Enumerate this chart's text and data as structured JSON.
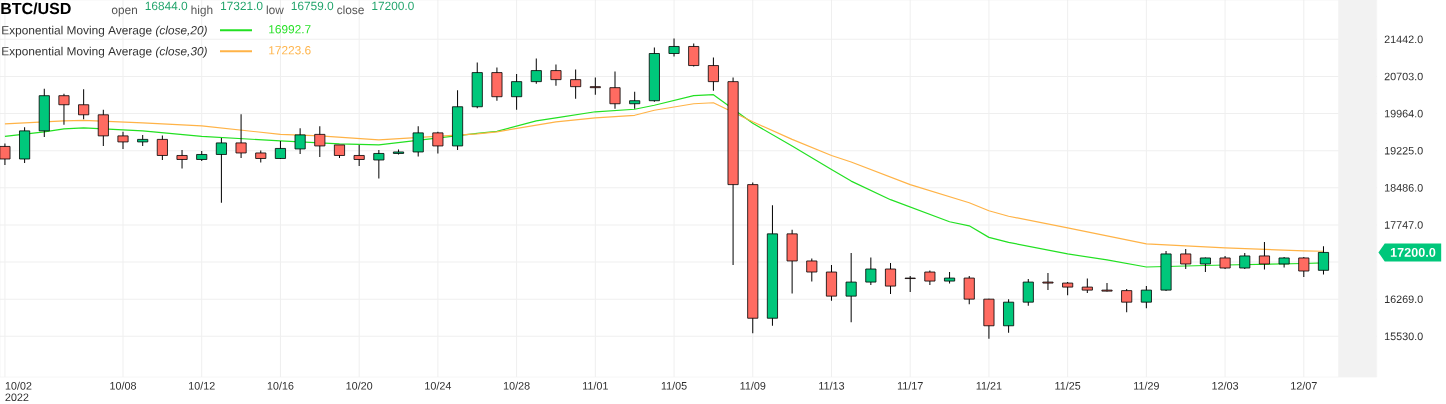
{
  "chart_data": {
    "type": "candlestick",
    "title": "BTC/USD",
    "annotations": [
      "open",
      "16844.0",
      "high",
      "17321.0",
      "low",
      "16759.0",
      "close",
      "17200.0",
      "16992.7",
      "17223.6",
      "17200.0"
    ],
    "x": [
      "2022-10-02",
      "2022-10-03",
      "2022-10-04",
      "2022-10-05",
      "2022-10-06",
      "2022-10-07",
      "2022-10-08",
      "2022-10-09",
      "2022-10-10",
      "2022-10-11",
      "2022-10-12",
      "2022-10-13",
      "2022-10-14",
      "2022-10-15",
      "2022-10-16",
      "2022-10-17",
      "2022-10-18",
      "2022-10-19",
      "2022-10-20",
      "2022-10-21",
      "2022-10-22",
      "2022-10-23",
      "2022-10-24",
      "2022-10-25",
      "2022-10-26",
      "2022-10-27",
      "2022-10-28",
      "2022-10-29",
      "2022-10-30",
      "2022-10-31",
      "2022-11-01",
      "2022-11-02",
      "2022-11-03",
      "2022-11-04",
      "2022-11-05",
      "2022-11-06",
      "2022-11-07",
      "2022-11-08",
      "2022-11-09",
      "2022-11-10",
      "2022-11-11",
      "2022-11-12",
      "2022-11-13",
      "2022-11-14",
      "2022-11-15",
      "2022-11-16",
      "2022-11-17",
      "2022-11-18",
      "2022-11-19",
      "2022-11-20",
      "2022-11-21",
      "2022-11-22",
      "2022-11-23",
      "2022-11-24",
      "2022-11-25",
      "2022-11-26",
      "2022-11-27",
      "2022-11-28",
      "2022-11-29",
      "2022-11-30",
      "2022-12-01",
      "2022-12-02",
      "2022-12-03",
      "2022-12-04",
      "2022-12-05",
      "2022-12-06",
      "2022-12-07",
      "2022-12-08"
    ],
    "ohlc": [
      [
        19310,
        19370,
        18940,
        19060
      ],
      [
        19060,
        19690,
        18980,
        19620
      ],
      [
        19620,
        20460,
        19500,
        20320
      ],
      [
        20320,
        20360,
        19740,
        20140
      ],
      [
        20140,
        20450,
        19850,
        19940
      ],
      [
        19940,
        20040,
        19320,
        19520
      ],
      [
        19520,
        19600,
        19260,
        19400
      ],
      [
        19400,
        19540,
        19320,
        19450
      ],
      [
        19450,
        19530,
        19040,
        19130
      ],
      [
        19130,
        19240,
        18870,
        19050
      ],
      [
        19050,
        19220,
        19020,
        19150
      ],
      [
        19150,
        19480,
        18190,
        19380
      ],
      [
        19380,
        19950,
        19080,
        19180
      ],
      [
        19180,
        19230,
        18990,
        19070
      ],
      [
        19070,
        19420,
        19060,
        19270
      ],
      [
        19260,
        19670,
        19160,
        19540
      ],
      [
        19550,
        19710,
        19100,
        19320
      ],
      [
        19340,
        19340,
        19080,
        19130
      ],
      [
        19130,
        19340,
        18920,
        19050
      ],
      [
        19040,
        19240,
        18670,
        19170
      ],
      [
        19170,
        19250,
        19150,
        19200
      ],
      [
        19200,
        19710,
        19110,
        19580
      ],
      [
        19580,
        19600,
        19170,
        19320
      ],
      [
        19320,
        20430,
        19240,
        20100
      ],
      [
        20100,
        20980,
        20070,
        20780
      ],
      [
        20780,
        20880,
        20220,
        20300
      ],
      [
        20300,
        20750,
        20040,
        20600
      ],
      [
        20600,
        21060,
        20560,
        20820
      ],
      [
        20820,
        20940,
        20520,
        20640
      ],
      [
        20640,
        20840,
        20260,
        20500
      ],
      [
        20500,
        20680,
        20340,
        20480
      ],
      [
        20480,
        20800,
        20060,
        20160
      ],
      [
        20160,
        20400,
        20060,
        20220
      ],
      [
        20220,
        21280,
        20200,
        21160
      ],
      [
        21160,
        21460,
        21100,
        21300
      ],
      [
        21300,
        21360,
        20900,
        20920
      ],
      [
        20920,
        21080,
        20420,
        20600
      ],
      [
        20600,
        20680,
        16950,
        18550
      ],
      [
        18550,
        18590,
        15590,
        15890
      ],
      [
        15890,
        18140,
        15740,
        17570
      ],
      [
        17570,
        17650,
        16380,
        17030
      ],
      [
        17030,
        17080,
        16620,
        16810
      ],
      [
        16810,
        16950,
        16240,
        16330
      ],
      [
        16330,
        17190,
        15810,
        16610
      ],
      [
        16610,
        17100,
        16550,
        16870
      ],
      [
        16870,
        16990,
        16370,
        16530
      ],
      [
        16690,
        16730,
        16410,
        16680
      ],
      [
        16810,
        16840,
        16550,
        16630
      ],
      [
        16630,
        16810,
        16580,
        16690
      ],
      [
        16690,
        16730,
        16170,
        16270
      ],
      [
        16270,
        16280,
        15480,
        15740
      ],
      [
        15740,
        16270,
        15600,
        16210
      ],
      [
        16210,
        16670,
        16140,
        16610
      ],
      [
        16610,
        16790,
        16450,
        16590
      ],
      [
        16590,
        16610,
        16350,
        16510
      ],
      [
        16510,
        16680,
        16390,
        16450
      ],
      [
        16450,
        16590,
        16420,
        16430
      ],
      [
        16440,
        16470,
        16010,
        16210
      ],
      [
        16210,
        16530,
        16090,
        16450
      ],
      [
        16450,
        17230,
        16430,
        17170
      ],
      [
        17170,
        17270,
        16870,
        16970
      ],
      [
        16970,
        17100,
        16810,
        17090
      ],
      [
        17090,
        17130,
        16870,
        16890
      ],
      [
        16890,
        17190,
        16870,
        17130
      ],
      [
        17130,
        17410,
        16860,
        16970
      ],
      [
        16970,
        17110,
        16900,
        17090
      ],
      [
        17090,
        17110,
        16710,
        16830
      ],
      [
        16844,
        17321,
        16759,
        17200
      ]
    ],
    "colors": [
      "#ff6b61",
      "#00c77b",
      "#00c77b",
      "#ff6b61",
      "#ff6b61",
      "#ff6b61",
      "#ff6b61",
      "#00c77b",
      "#ff6b61",
      "#ff6b61",
      "#00c77b",
      "#00c77b",
      "#ff6b61",
      "#ff6b61",
      "#00c77b",
      "#00c77b",
      "#ff6b61",
      "#ff6b61",
      "#ff6b61",
      "#00c77b",
      "#00c77b",
      "#00c77b",
      "#ff6b61",
      "#00c77b",
      "#00c77b",
      "#ff6b61",
      "#00c77b",
      "#00c77b",
      "#ff6b61",
      "#ff6b61",
      "#ff6b61",
      "#ff6b61",
      "#00c77b",
      "#00c77b",
      "#00c77b",
      "#ff6b61",
      "#ff6b61",
      "#ff6b61",
      "#ff6b61",
      "#00c77b",
      "#ff6b61",
      "#ff6b61",
      "#ff6b61",
      "#00c77b",
      "#00c77b",
      "#ff6b61",
      "#ff6b61",
      "#ff6b61",
      "#00c77b",
      "#ff6b61",
      "#ff6b61",
      "#00c77b",
      "#00c77b",
      "#ff6b61",
      "#ff6b61",
      "#ff6b61",
      "#ff6b61",
      "#ff6b61",
      "#00c77b",
      "#00c77b",
      "#ff6b61",
      "#00c77b",
      "#ff6b61",
      "#00c77b",
      "#ff6b61",
      "#00c77b",
      "#ff6b61",
      "#00c77b"
    ],
    "series": [
      {
        "name": "Exponential Moving Average *(close,20)*",
        "type": "line",
        "color": "#22e022",
        "x": [
          "2022-10-02",
          "2022-10-04",
          "2022-10-05",
          "2022-10-06",
          "2022-10-09",
          "2022-10-12",
          "2022-10-16",
          "2022-10-19",
          "2022-10-21",
          "2022-10-26",
          "2022-10-27",
          "2022-10-29",
          "2022-10-30",
          "2022-11-01",
          "2022-11-03",
          "2022-11-04",
          "2022-11-06",
          "2022-11-07",
          "2022-11-09",
          "2022-11-11",
          "2022-11-13",
          "2022-11-14",
          "2022-11-16",
          "2022-11-19",
          "2022-11-20",
          "2022-11-21",
          "2022-11-22",
          "2022-11-25",
          "2022-11-27",
          "2022-11-29",
          "2022-12-01",
          "2022-12-03",
          "2022-12-07",
          "2022-12-08"
        ],
        "values": [
          19510,
          19600,
          19660,
          19680,
          19620,
          19510,
          19420,
          19360,
          19340,
          19570,
          19610,
          19820,
          19880,
          20000,
          20050,
          20130,
          20320,
          20340,
          19770,
          19320,
          18850,
          18620,
          18250,
          17810,
          17730,
          17500,
          17400,
          17170,
          17050,
          16910,
          16930,
          16950,
          16980,
          16992.7
        ]
      },
      {
        "name": "Exponential Moving Average *(close,30)*",
        "type": "line",
        "color": "#ffb347",
        "x": [
          "2022-10-02",
          "2022-10-05",
          "2022-10-06",
          "2022-10-09",
          "2022-10-12",
          "2022-10-16",
          "2022-10-18",
          "2022-10-21",
          "2022-10-26",
          "2022-10-27",
          "2022-10-30",
          "2022-11-01",
          "2022-11-03",
          "2022-11-04",
          "2022-11-06",
          "2022-11-07",
          "2022-11-09",
          "2022-11-11",
          "2022-11-13",
          "2022-11-14",
          "2022-11-17",
          "2022-11-20",
          "2022-11-21",
          "2022-11-22",
          "2022-11-25",
          "2022-11-29",
          "2022-12-03",
          "2022-12-07",
          "2022-12-08"
        ],
        "values": [
          19760,
          19820,
          19830,
          19780,
          19720,
          19550,
          19520,
          19440,
          19560,
          19600,
          19800,
          19880,
          19930,
          20030,
          20160,
          20180,
          19800,
          19450,
          19130,
          19000,
          18550,
          18190,
          18030,
          17920,
          17690,
          17370,
          17290,
          17230,
          17223.6
        ]
      }
    ],
    "xlim": [
      "2022-10-01T18:00",
      "2022-12-10T17:00"
    ],
    "xticks": [
      {
        "value": "2022-10-02",
        "label": "10/02 2022"
      },
      {
        "value": "2022-10-08",
        "label": "10/08"
      },
      {
        "value": "2022-10-12",
        "label": "10/12"
      },
      {
        "value": "2022-10-16",
        "label": "10/16"
      },
      {
        "value": "2022-10-20",
        "label": "10/20"
      },
      {
        "value": "2022-10-24",
        "label": "10/24"
      },
      {
        "value": "2022-10-28",
        "label": "10/28"
      },
      {
        "value": "2022-11-01",
        "label": "11/01"
      },
      {
        "value": "2022-11-05",
        "label": "11/05"
      },
      {
        "value": "2022-11-09",
        "label": "11/09"
      },
      {
        "value": "2022-11-13",
        "label": "11/13"
      },
      {
        "value": "2022-11-17",
        "label": "11/17"
      },
      {
        "value": "2022-11-21",
        "label": "11/21"
      },
      {
        "value": "2022-11-25",
        "label": "11/25"
      },
      {
        "value": "2022-11-29",
        "label": "11/29"
      },
      {
        "value": "2022-12-03",
        "label": "12/03"
      },
      {
        "value": "2022-12-07",
        "label": "12/07"
      }
    ],
    "ylim": [
      14720,
      22225
    ],
    "yticks": [
      {
        "value": 15530,
        "label": "15530.0"
      },
      {
        "value": 16269,
        "label": "16269.0"
      },
      {
        "value": 17008,
        "label": null
      },
      {
        "value": 17747,
        "label": "17747.0"
      },
      {
        "value": 18486,
        "label": "18486.0"
      },
      {
        "value": 19225,
        "label": "19225.0"
      },
      {
        "value": 19964,
        "label": "19964.0"
      },
      {
        "value": 20703,
        "label": "20703.0"
      },
      {
        "value": 21442,
        "label": "21442.0"
      }
    ],
    "bands": [
      {
        "axis": "x",
        "from": "2022-12-08T18:00",
        "to": "2022-12-10T17:00",
        "color": "#f2f2f2"
      }
    ],
    "grid": true,
    "legend": "top left"
  }
}
